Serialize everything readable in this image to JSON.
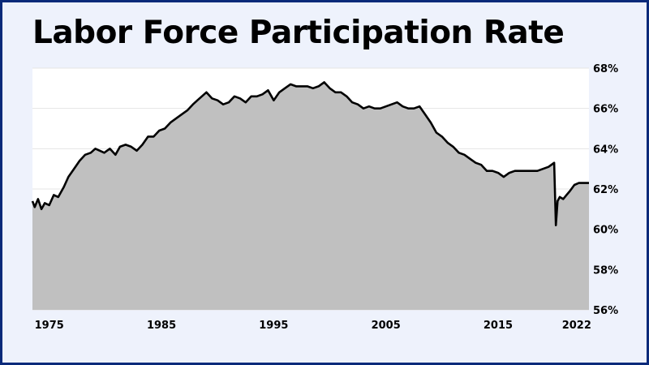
{
  "chart_data": {
    "type": "area",
    "title": "Labor Force Participation Rate",
    "xlabel": "",
    "ylabel": "",
    "xlim": [
      1973.5,
      2023.1
    ],
    "ylim": [
      56,
      68
    ],
    "yticks": [
      {
        "value": 68,
        "label": "68%"
      },
      {
        "value": 66,
        "label": "66%"
      },
      {
        "value": 64,
        "label": "64%"
      },
      {
        "value": 62,
        "label": "62%"
      },
      {
        "value": 60,
        "label": "60%"
      },
      {
        "value": 58,
        "label": "58%"
      },
      {
        "value": 56,
        "label": "56%"
      }
    ],
    "xticks": [
      {
        "value": 1975,
        "label": "1975"
      },
      {
        "value": 1985,
        "label": "1985"
      },
      {
        "value": 1995,
        "label": "1995"
      },
      {
        "value": 2005,
        "label": "2005"
      },
      {
        "value": 2015,
        "label": "2015"
      },
      {
        "value": 2022,
        "label": "2022"
      }
    ],
    "grid": true,
    "y_axis_side": "right",
    "colors": {
      "fill": "#c0c0c0",
      "line": "#000000",
      "grid": "#e4e4e4",
      "plot_bg": "#ffffff"
    },
    "series": [
      {
        "x": [
          1973.5,
          1973.7,
          1974.0,
          1974.3,
          1974.6,
          1975.0,
          1975.4,
          1975.8,
          1976.3,
          1976.7,
          1977.2,
          1977.7,
          1978.2,
          1978.7,
          1979.1,
          1979.5,
          1979.9,
          1980.4,
          1980.9,
          1981.3,
          1981.8,
          1982.3,
          1982.8,
          1983.3,
          1983.8,
          1984.3,
          1984.8,
          1985.3,
          1985.8,
          1986.3,
          1986.8,
          1987.3,
          1987.8,
          1988.2,
          1988.6,
          1989.0,
          1989.5,
          1990.0,
          1990.5,
          1991.0,
          1991.5,
          1992.0,
          1992.5,
          1993.0,
          1993.5,
          1994.0,
          1994.5,
          1995.0,
          1995.5,
          1996.0,
          1996.5,
          1997.0,
          1997.5,
          1998.0,
          1998.5,
          1999.0,
          1999.5,
          2000.0,
          2000.5,
          2001.0,
          2001.5,
          2002.0,
          2002.5,
          2003.0,
          2003.5,
          2004.0,
          2004.5,
          2005.0,
          2005.5,
          2006.0,
          2006.5,
          2007.0,
          2007.5,
          2008.0,
          2008.5,
          2009.0,
          2009.5,
          2010.0,
          2010.5,
          2011.0,
          2011.5,
          2012.0,
          2012.5,
          2013.0,
          2013.5,
          2014.0,
          2014.5,
          2015.0,
          2015.5,
          2016.0,
          2016.5,
          2017.0,
          2017.5,
          2018.0,
          2018.5,
          2019.0,
          2019.5,
          2020.0,
          2020.15,
          2020.3,
          2020.5,
          2020.8,
          2021.1,
          2021.4,
          2021.8,
          2022.2,
          2022.6,
          2023.1
        ],
        "y": [
          61.4,
          61.1,
          61.5,
          61.0,
          61.3,
          61.2,
          61.7,
          61.6,
          62.1,
          62.6,
          63.0,
          63.4,
          63.7,
          63.8,
          64.0,
          63.9,
          63.8,
          64.0,
          63.7,
          64.1,
          64.2,
          64.1,
          63.9,
          64.2,
          64.6,
          64.6,
          64.9,
          65.0,
          65.3,
          65.5,
          65.7,
          65.9,
          66.2,
          66.4,
          66.6,
          66.8,
          66.5,
          66.4,
          66.2,
          66.3,
          66.6,
          66.5,
          66.3,
          66.6,
          66.6,
          66.7,
          66.9,
          66.4,
          66.8,
          67.0,
          67.2,
          67.1,
          67.1,
          67.1,
          67.0,
          67.1,
          67.3,
          67.0,
          66.8,
          66.8,
          66.6,
          66.3,
          66.2,
          66.0,
          66.1,
          66.0,
          66.0,
          66.1,
          66.2,
          66.3,
          66.1,
          66.0,
          66.0,
          66.1,
          65.7,
          65.3,
          64.8,
          64.6,
          64.3,
          64.1,
          63.8,
          63.7,
          63.5,
          63.3,
          63.2,
          62.9,
          62.9,
          62.8,
          62.6,
          62.8,
          62.9,
          62.9,
          62.9,
          62.9,
          62.9,
          63.0,
          63.1,
          63.3,
          60.2,
          61.4,
          61.6,
          61.5,
          61.7,
          61.9,
          62.2,
          62.3,
          62.3,
          62.3
        ]
      }
    ]
  }
}
